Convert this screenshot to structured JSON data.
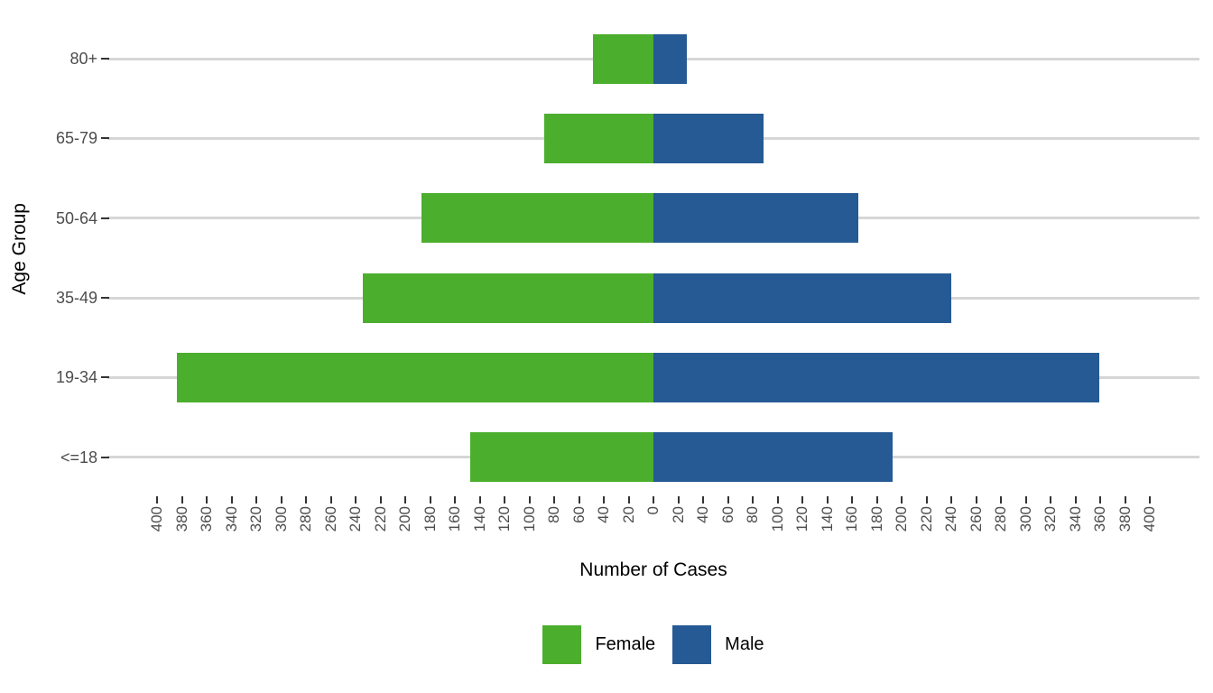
{
  "chart_data": {
    "type": "bar",
    "variant": "diverging-horizontal-population-pyramid",
    "title": "",
    "xlabel": "Number of Cases",
    "ylabel": "Age Group",
    "categories": [
      "80+",
      "65-79",
      "50-64",
      "35-49",
      "19-34",
      "<=18"
    ],
    "series": [
      {
        "name": "Female",
        "side": "left",
        "color": "#4CAE2D",
        "values": [
          49,
          88,
          187,
          234,
          384,
          148
        ]
      },
      {
        "name": "Male",
        "side": "right",
        "color": "#265A94",
        "values": [
          27,
          89,
          165,
          240,
          359,
          193
        ]
      }
    ],
    "x_axis": {
      "min": -440,
      "max": 440,
      "tick_min": -400,
      "tick_max": 400,
      "tick_step": 20,
      "tick_label_style": "absolute-value",
      "tick_label_rotation_deg": 90
    },
    "x_tick_labels": [
      "400",
      "380",
      "360",
      "340",
      "320",
      "300",
      "280",
      "260",
      "240",
      "220",
      "200",
      "180",
      "160",
      "140",
      "120",
      "100",
      "80",
      "60",
      "40",
      "20",
      "0",
      "20",
      "40",
      "60",
      "80",
      "100",
      "120",
      "140",
      "160",
      "180",
      "200",
      "220",
      "240",
      "260",
      "280",
      "300",
      "320",
      "340",
      "360",
      "380",
      "400"
    ],
    "grid": {
      "horizontal": true,
      "vertical": false,
      "color": "#D6D6D6"
    },
    "legend": {
      "position": "bottom",
      "entries": [
        {
          "label": "Female",
          "color": "#4CAE2D"
        },
        {
          "label": "Male",
          "color": "#265A94"
        }
      ]
    },
    "style": {
      "axis_text_color": "#4D4D4D",
      "tick_mark_color": "#333333",
      "axis_title_color": "#000000",
      "background": "#FFFFFF"
    }
  }
}
